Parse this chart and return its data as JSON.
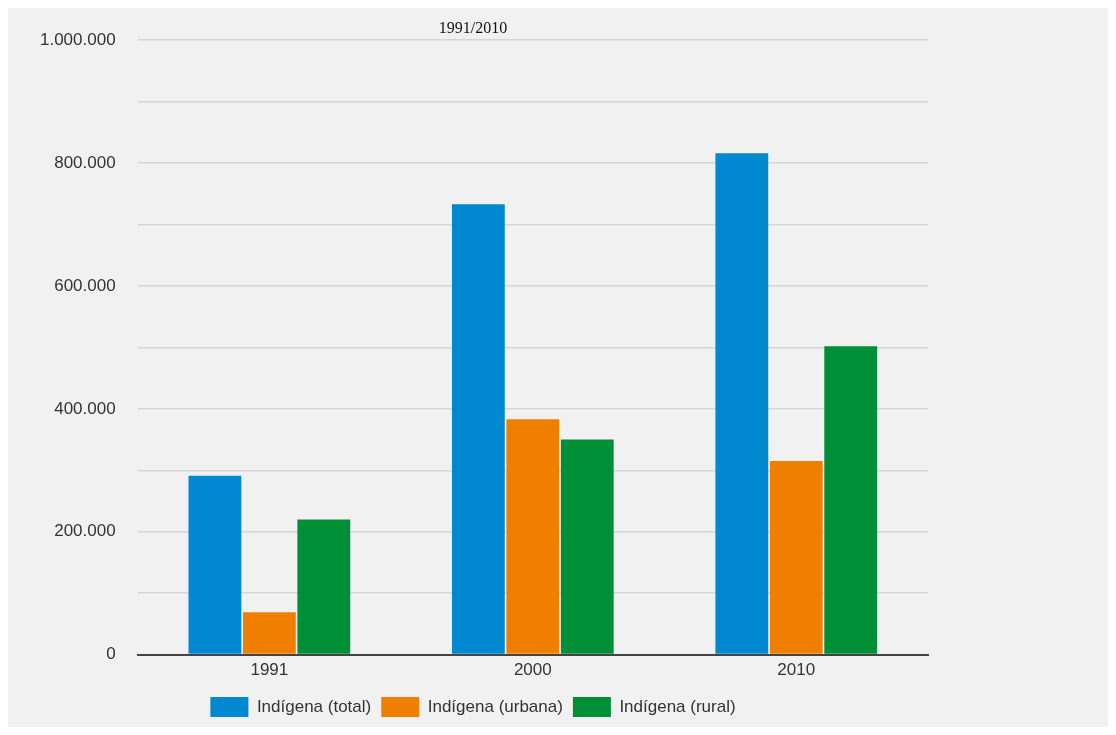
{
  "chart_data": {
    "type": "bar",
    "title": "1991/2010",
    "categories": [
      "1991",
      "2000",
      "2010"
    ],
    "series": [
      {
        "name": "Indígena (total)",
        "color": "#0088d1",
        "values": [
          291000,
          733000,
          816000
        ]
      },
      {
        "name": "Indígena (urbana)",
        "color": "#f07f00",
        "values": [
          69000,
          383000,
          315000
        ]
      },
      {
        "name": "Indígena (rural)",
        "color": "#008f36",
        "values": [
          220000,
          350000,
          502000
        ]
      }
    ],
    "ylim": [
      0,
      1000000
    ],
    "yticks": [
      {
        "value": 0,
        "label": "0"
      },
      {
        "value": 100000,
        "label": null
      },
      {
        "value": 200000,
        "label": "200.000"
      },
      {
        "value": 300000,
        "label": null
      },
      {
        "value": 400000,
        "label": "400.000"
      },
      {
        "value": 500000,
        "label": null
      },
      {
        "value": 600000,
        "label": "600.000"
      },
      {
        "value": 700000,
        "label": null
      },
      {
        "value": 800000,
        "label": "800.000"
      },
      {
        "value": 900000,
        "label": null
      },
      {
        "value": 1000000,
        "label": "1.000.000"
      }
    ],
    "grid": "y",
    "legend": "bottom"
  }
}
